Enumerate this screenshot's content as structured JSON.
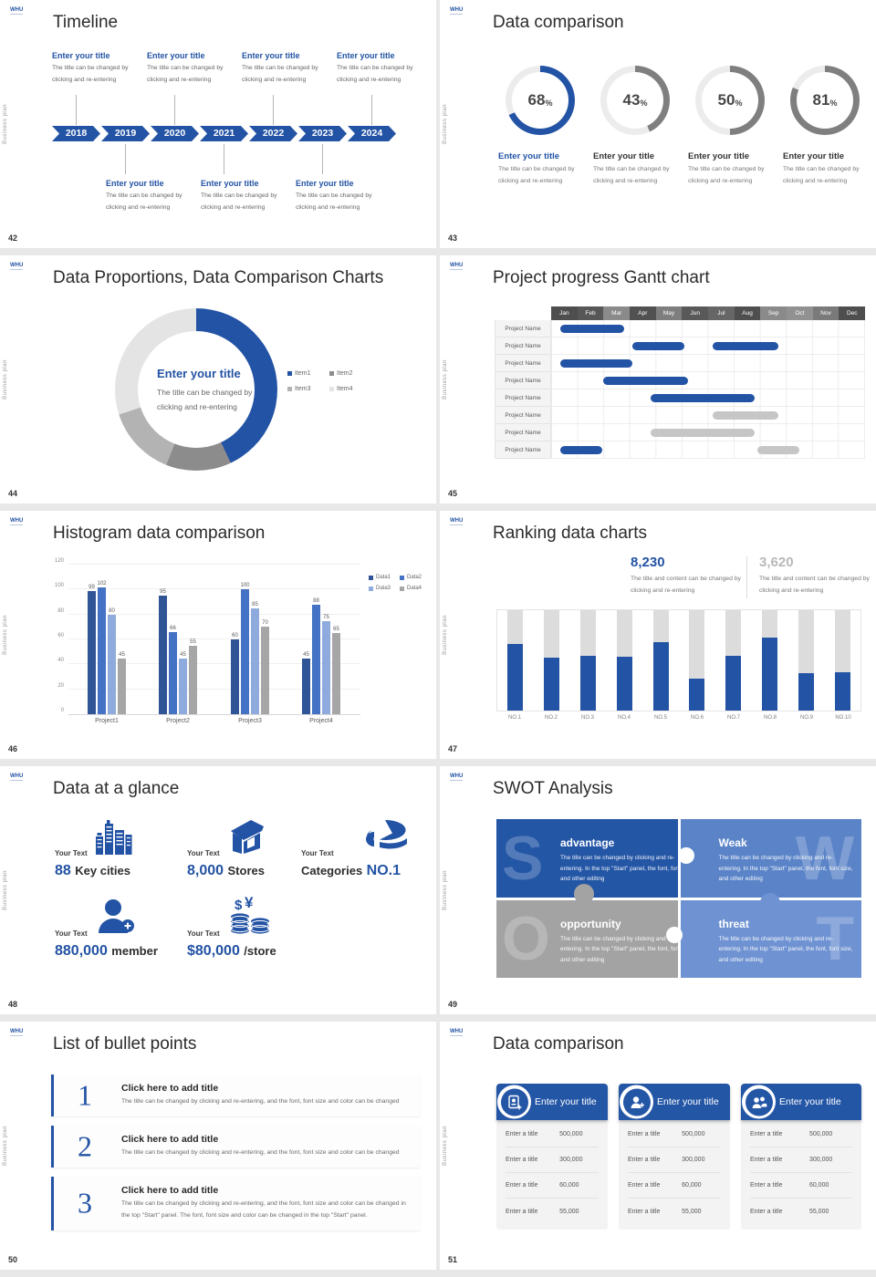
{
  "logo": "WHU",
  "side_label": "Business plan",
  "accent": "#2353a4",
  "s42": {
    "number": "42",
    "title": "Timeline",
    "years": [
      "2018",
      "2019",
      "2020",
      "2021",
      "2022",
      "2023",
      "2024"
    ],
    "item_title": "Enter your title",
    "item_body": "The title can be changed by clicking and re-entering"
  },
  "s43": {
    "number": "43",
    "title": "Data comparison",
    "item_title": "Enter your title",
    "item_body": "The title can be changed by clicking and re-entering",
    "unit": "%",
    "chart_data": {
      "type": "donut-progress",
      "values": [
        68,
        43,
        50,
        81
      ],
      "accent_colors": [
        "#2353a4",
        "#7f7f7f",
        "#7f7f7f",
        "#7f7f7f"
      ],
      "track_color": "#ececec"
    }
  },
  "s44": {
    "number": "44",
    "title": "Data Proportions, Data Comparison Charts",
    "center_title": "Enter your title",
    "center_body": "The title can be changed by clicking and re-entering",
    "chart_data": {
      "type": "pie",
      "labels": [
        "Item1",
        "Item2",
        "Item3",
        "Item4"
      ],
      "values": [
        43,
        13,
        14,
        30
      ],
      "colors": [
        "#2353a4",
        "#8c8c8c",
        "#b3b3b3",
        "#e4e4e4"
      ]
    }
  },
  "s45": {
    "number": "45",
    "title": "Project progress Gantt chart",
    "row_label": "Project Name",
    "chart_data": {
      "type": "gantt",
      "months": [
        "Jan",
        "Feb",
        "Mar",
        "Apr",
        "May",
        "Jun",
        "Jul",
        "Aug",
        "Sep",
        "Oct",
        "Nov",
        "Dec"
      ],
      "month_colors": [
        "#4e4e4e",
        "#575757",
        "#8a8a8a",
        "#515151",
        "#7e7e7e",
        "#595959",
        "#666666",
        "#4f4f4f",
        "#8a8a8a",
        "#919191",
        "#7a7a7a",
        "#4e4e4e"
      ],
      "bar_colors": {
        "b": "#2353a4",
        "g": "#c6c6c6"
      },
      "rows": [
        {
          "bars": [
            {
              "start": 0.35,
              "end": 2.8,
              "color": "b"
            }
          ]
        },
        {
          "bars": [
            {
              "start": 3.1,
              "end": 5.1,
              "color": "b"
            },
            {
              "start": 6.2,
              "end": 8.7,
              "color": "b"
            }
          ]
        },
        {
          "bars": [
            {
              "start": 0.35,
              "end": 3.1,
              "color": "b"
            }
          ]
        },
        {
          "bars": [
            {
              "start": 2.0,
              "end": 5.25,
              "color": "b"
            }
          ]
        },
        {
          "bars": [
            {
              "start": 3.8,
              "end": 7.8,
              "color": "b"
            }
          ]
        },
        {
          "bars": [
            {
              "start": 6.2,
              "end": 8.7,
              "color": "g"
            }
          ]
        },
        {
          "bars": [
            {
              "start": 3.8,
              "end": 7.8,
              "color": "g"
            }
          ]
        },
        {
          "bars": [
            {
              "start": 0.35,
              "end": 1.95,
              "color": "b"
            },
            {
              "start": 7.9,
              "end": 9.5,
              "color": "g"
            }
          ]
        }
      ]
    }
  },
  "s46": {
    "number": "46",
    "title": "Histogram data comparison",
    "chart_data": {
      "type": "bar",
      "categories": [
        "Project1",
        "Project2",
        "Project3",
        "Project4"
      ],
      "series": [
        {
          "name": "Data1",
          "color": "#2f5597",
          "values": [
            99,
            95,
            60,
            45
          ]
        },
        {
          "name": "Data2",
          "color": "#4472c4",
          "values": [
            102,
            66,
            100,
            88
          ]
        },
        {
          "name": "Data3",
          "color": "#8faadc",
          "values": [
            80,
            45,
            85,
            75
          ]
        },
        {
          "name": "Data4",
          "color": "#a6a6a6",
          "values": [
            45,
            55,
            70,
            65
          ]
        }
      ],
      "yticks": [
        0,
        20,
        40,
        60,
        80,
        100,
        120
      ],
      "ylim": [
        0,
        120
      ],
      "legend_position": "top-right"
    }
  },
  "s47": {
    "number": "47",
    "title": "Ranking data charts",
    "stat1": {
      "value": "8,230",
      "color": "#2353a4",
      "body": "The title and content can be changed by clicking and re-entering"
    },
    "stat2": {
      "value": "3,620",
      "color": "#b8b8b8",
      "body": "The title and content can be changed by clicking and re-entering"
    },
    "chart_data": {
      "type": "bar",
      "categories": [
        "NO.1",
        "NO.2",
        "NO.3",
        "NO.4",
        "NO.5",
        "NO.6",
        "NO.7",
        "NO.8",
        "NO.9",
        "NO.10"
      ],
      "values": [
        66,
        53,
        55,
        54,
        68,
        32,
        55,
        73,
        37,
        38
      ],
      "ymax": 100,
      "bar_color": "#2353a4",
      "track_color": "#dcdcdc"
    }
  },
  "s48": {
    "number": "48",
    "title": "Data at a glance",
    "stats": [
      {
        "label": "Your Text",
        "icon": "city-icon",
        "value": "88",
        "unit": "Key cities"
      },
      {
        "label": "Your Text",
        "icon": "store-icon",
        "value": "8,000",
        "unit": "Stores"
      },
      {
        "label": "Your Text",
        "icon": "categories-pie-icon",
        "prefix": "Categories",
        "value": "NO.1"
      },
      {
        "label": "Your Text",
        "icon": "member-add-icon",
        "value": "880,000",
        "unit": "member"
      },
      {
        "label": "Your Text",
        "icon": "coins-icon",
        "value": "$80,000",
        "unit": "/store"
      }
    ]
  },
  "s49": {
    "number": "49",
    "title": "SWOT Analysis",
    "body": "The title can be changed by clicking and re-entering. In the top \"Start\" panel, the font, font size, and other editing",
    "quadrants": [
      {
        "letter": "S",
        "title": "advantage",
        "color": "#2456a6"
      },
      {
        "letter": "W",
        "title": "Weak",
        "color": "#5b84c8"
      },
      {
        "letter": "O",
        "title": "opportunity",
        "color": "#a3a3a3"
      },
      {
        "letter": "T",
        "title": "threat",
        "color": "#6f93d2"
      }
    ]
  },
  "s50": {
    "number": "50",
    "title": "List of bullet points",
    "items": [
      {
        "num": "1",
        "title": "Click here to add title",
        "body": "The title can be changed by clicking and re-entering, and the font, font size and color can be changed"
      },
      {
        "num": "2",
        "title": "Click here to add title",
        "body": "The title can be changed by clicking and re-entering, and the font, font size and color can be changed"
      },
      {
        "num": "3",
        "title": "Click here to add title",
        "body": "The title can be changed by clicking and re-entering, and the font, font size and color can be changed in the top \"Start\" panel. The font, font size and color can be changed in the top \"Start\" panel."
      }
    ]
  },
  "s51": {
    "number": "51",
    "title": "Data comparison",
    "cards": [
      {
        "icon": "id-card-plus-icon",
        "title": "Enter your title",
        "rows": [
          {
            "label": "Enter a title",
            "value": "500,000"
          },
          {
            "label": "Enter a title",
            "value": "300,000"
          },
          {
            "label": "Enter a title",
            "value": "60,000"
          },
          {
            "label": "Enter a title",
            "value": "55,000"
          }
        ]
      },
      {
        "icon": "person-plus-icon",
        "title": "Enter your title",
        "rows": [
          {
            "label": "Enter a title",
            "value": "500,000"
          },
          {
            "label": "Enter a title",
            "value": "300,000"
          },
          {
            "label": "Enter a title",
            "value": "60,000"
          },
          {
            "label": "Enter a title",
            "value": "55,000"
          }
        ]
      },
      {
        "icon": "people-icon",
        "title": "Enter your title",
        "rows": [
          {
            "label": "Enter a title",
            "value": "500,000"
          },
          {
            "label": "Enter a title",
            "value": "300,000"
          },
          {
            "label": "Enter a title",
            "value": "60,000"
          },
          {
            "label": "Enter a title",
            "value": "55,000"
          }
        ]
      }
    ]
  }
}
